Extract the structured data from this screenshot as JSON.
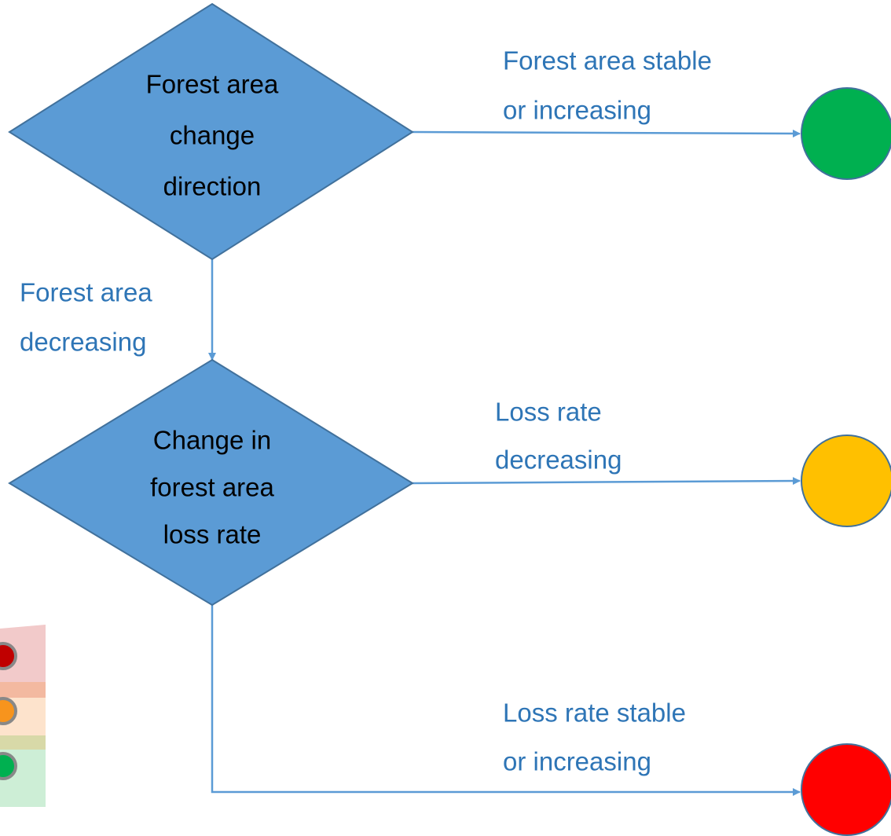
{
  "decisions": [
    {
      "lines": [
        "Forest area",
        "change",
        "direction"
      ]
    },
    {
      "lines": [
        "Change in",
        "forest area",
        "loss rate"
      ]
    }
  ],
  "edges": [
    {
      "lines": [
        "Forest area stable",
        "or increasing"
      ]
    },
    {
      "lines": [
        "Forest area",
        "decreasing"
      ]
    },
    {
      "lines": [
        "Loss rate",
        "decreasing"
      ]
    },
    {
      "lines": [
        "Loss rate stable",
        "or increasing"
      ]
    }
  ]
}
